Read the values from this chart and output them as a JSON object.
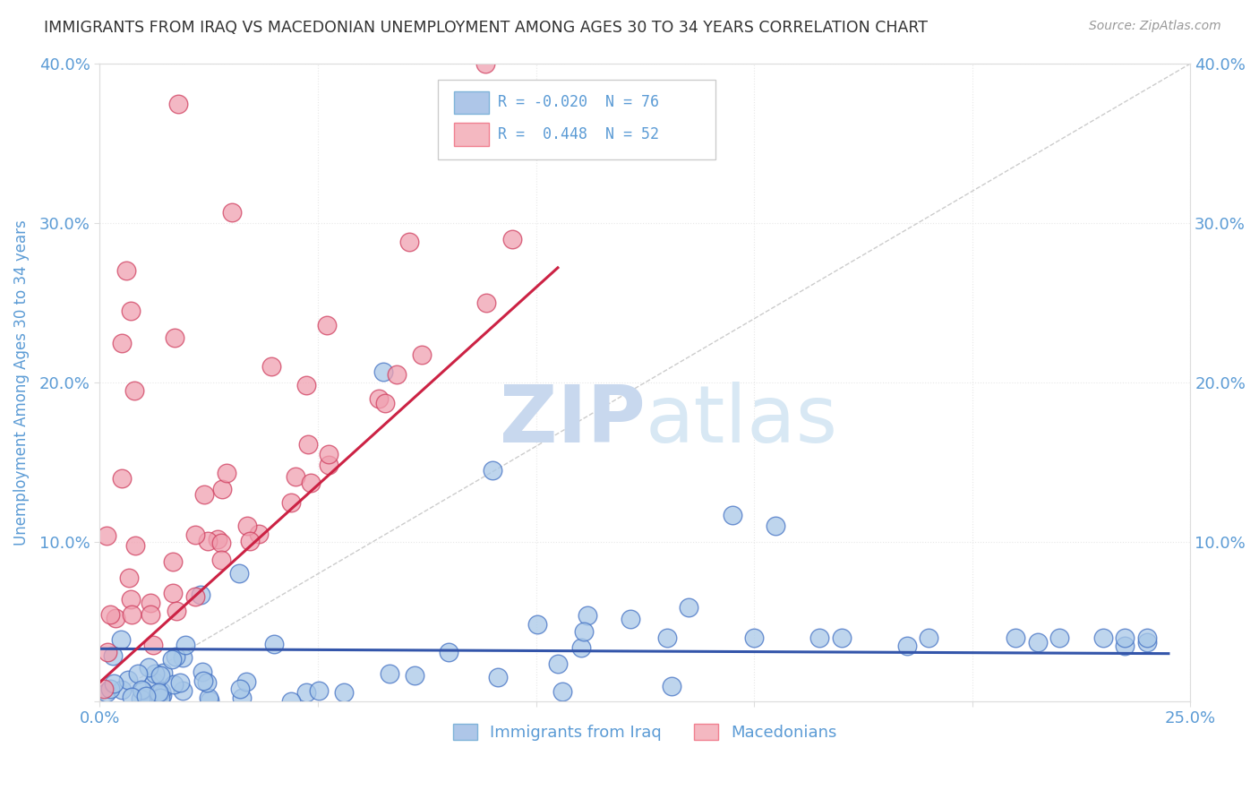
{
  "title": "IMMIGRANTS FROM IRAQ VS MACEDONIAN UNEMPLOYMENT AMONG AGES 30 TO 34 YEARS CORRELATION CHART",
  "source": "Source: ZipAtlas.com",
  "ylabel": "Unemployment Among Ages 30 to 34 years",
  "xlim": [
    0.0,
    0.25
  ],
  "ylim": [
    0.0,
    0.4
  ],
  "blue_R": -0.02,
  "blue_N": 76,
  "pink_R": 0.448,
  "pink_N": 52,
  "scatter_blue_color": "#a8c8e8",
  "scatter_blue_edge": "#4472c4",
  "scatter_pink_color": "#f0a0b0",
  "scatter_pink_edge": "#d04060",
  "trendline_blue_color": "#3355aa",
  "trendline_pink_color": "#cc2244",
  "diagonal_color": "#cccccc",
  "watermark_color": "#c8d8ee",
  "background_color": "#ffffff",
  "grid_color": "#e8e8e8",
  "title_color": "#333333",
  "axis_label_color": "#5b9bd5",
  "tick_label_color": "#5b9bd5",
  "legend_blue_face": "#aec6e8",
  "legend_blue_edge": "#7fb3d9",
  "legend_pink_face": "#f4b8c1",
  "legend_pink_edge": "#f08090"
}
